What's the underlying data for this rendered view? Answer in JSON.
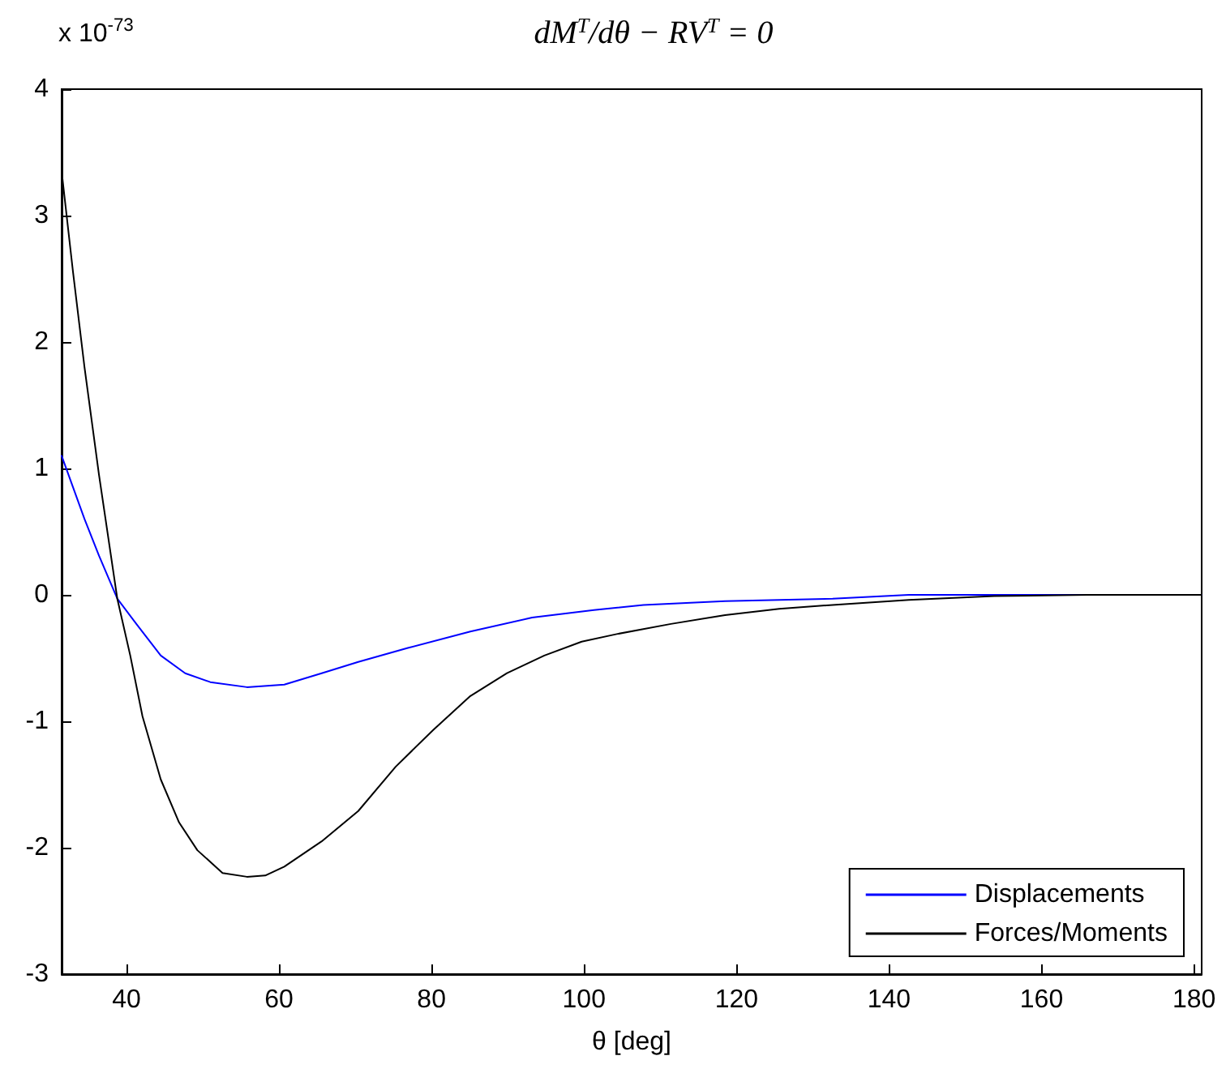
{
  "chart_data": {
    "type": "line",
    "title": "dM$^{T}$/dθ − RV$^{T}$ = 0",
    "xlabel": "θ [deg]",
    "annotations": [
      "x 10$^{-73}$"
    ],
    "xlim": [
      31.5,
      181
    ],
    "xticks": [
      40,
      60,
      80,
      100,
      120,
      140,
      160,
      180
    ],
    "ylim": [
      -3,
      4
    ],
    "yticks": [
      -3,
      -2,
      -1,
      0,
      1,
      2,
      3,
      4
    ],
    "grid": false,
    "legend": "bottom right",
    "marker": "none",
    "line_style": "solid",
    "series": [
      {
        "name": "Displacements",
        "color": "#0000ff",
        "x": [
          31.5,
          33,
          34.5,
          36.4,
          38.8,
          41.3,
          44.5,
          47.7,
          51.0,
          55.8,
          60.7,
          65.6,
          70.4,
          76.9,
          85.1,
          93.2,
          101.3,
          107.8,
          118.5,
          132.6,
          142.6,
          166,
          181
        ],
        "values": [
          1.1,
          0.85,
          0.6,
          0.31,
          -0.03,
          -0.23,
          -0.48,
          -0.62,
          -0.69,
          -0.73,
          -0.71,
          -0.62,
          -0.53,
          -0.42,
          -0.29,
          -0.18,
          -0.12,
          -0.08,
          -0.05,
          -0.03,
          0,
          0,
          0
        ]
      },
      {
        "name": "Forces/Moments",
        "color": "#000000",
        "x": [
          31.5,
          33,
          34.5,
          36.4,
          38.8,
          40.5,
          42.1,
          44.5,
          46.9,
          49.3,
          52.6,
          55.8,
          58.2,
          60.7,
          65.6,
          70.4,
          75.3,
          80.2,
          85.1,
          89.9,
          94.8,
          99.7,
          104.3,
          111.4,
          118.5,
          125.6,
          132.6,
          142.6,
          153.8,
          166,
          181
        ],
        "values": [
          3.35,
          2.55,
          1.8,
          0.95,
          -0.03,
          -0.48,
          -0.96,
          -1.46,
          -1.8,
          -2.02,
          -2.2,
          -2.23,
          -2.22,
          -2.15,
          -1.95,
          -1.71,
          -1.36,
          -1.07,
          -0.8,
          -0.62,
          -0.48,
          -0.37,
          -0.31,
          -0.23,
          -0.16,
          -0.11,
          -0.08,
          -0.04,
          -0.01,
          0,
          0
        ]
      }
    ]
  }
}
